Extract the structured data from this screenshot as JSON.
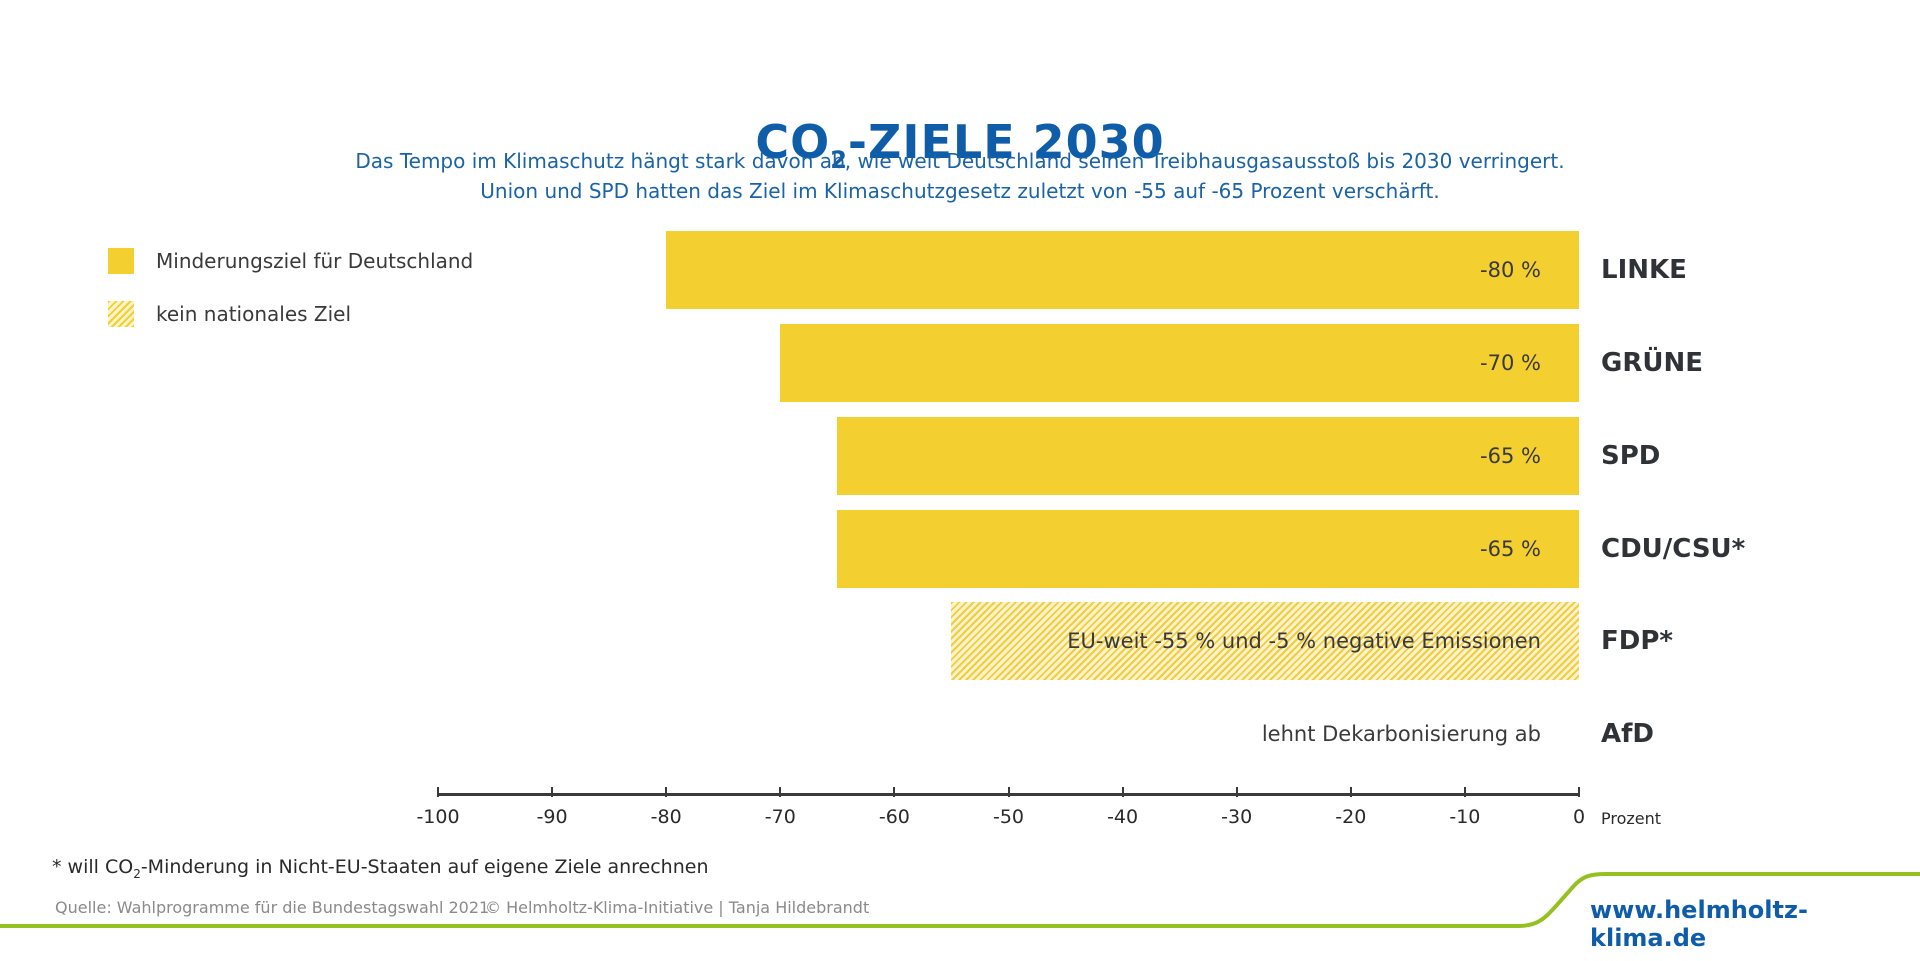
{
  "header": {
    "title_main": "CO",
    "title_sub": "2",
    "title_rest": "-ZIELE 2030",
    "subtitle_line1": "Das Tempo im Klimaschutz hängt stark davon ab, wie weit Deutschland seinen Treibhausgasausstoß bis 2030 verringert.",
    "subtitle_line2": "Union und SPD hatten das Ziel im Klimaschutzgesetz zuletzt von -55 auf -65 Prozent verschärft."
  },
  "legend": {
    "items": [
      {
        "label": "Minderungsziel für Deutschland",
        "style": "solid"
      },
      {
        "label": "kein nationales Ziel",
        "style": "hatched"
      }
    ]
  },
  "colors": {
    "bar_fill": "#f3cf2f",
    "title_blue": "#0f5da8",
    "accent_green": "#94c11f"
  },
  "chart_data": {
    "type": "bar",
    "orientation": "horizontal",
    "categories": [
      "LINKE",
      "GRÜNE",
      "SPD",
      "CDU/CSU*",
      "FDP*",
      "AfD"
    ],
    "values": [
      -80,
      -70,
      -65,
      -65,
      -55,
      null
    ],
    "bar_styles": [
      "solid",
      "solid",
      "solid",
      "solid",
      "hatched",
      "none"
    ],
    "bar_labels": [
      "-80 %",
      "-70 %",
      "-65 %",
      "-65 %",
      "EU-weit -55 % und -5 % negative Emissionen",
      "lehnt Dekarbonisierung ab"
    ],
    "xlim": [
      -100,
      0
    ],
    "xticks": [
      -100,
      -90,
      -80,
      -70,
      -60,
      -50,
      -40,
      -30,
      -20,
      -10,
      0
    ],
    "xtick_labels": [
      "-100",
      "-90",
      "-80",
      "-70",
      "-60",
      "-50",
      "-40",
      "-30",
      "-20",
      "-10",
      "0"
    ],
    "xlabel": "Prozent",
    "legend_position": "top-left",
    "grid": false
  },
  "footer": {
    "footnote_pre": "* will CO",
    "footnote_sub": "2",
    "footnote_post": "-Minderung in Nicht-EU-Staaten auf eigene Ziele anrechnen",
    "source": "Quelle: Wahlprogramme für die Bundestagswahl 2021",
    "copyright": "© Helmholtz-Klima-Initiative | Tanja Hildebrandt",
    "url": "www.helmholtz-klima.de"
  }
}
